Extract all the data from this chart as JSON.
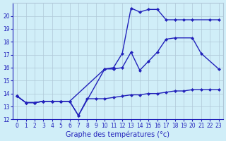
{
  "line1": {
    "x": [
      0,
      1,
      2,
      3,
      4,
      5,
      6,
      7,
      8,
      9,
      10,
      11,
      12,
      13,
      14,
      15,
      16,
      17,
      18,
      19,
      20,
      21,
      22,
      23
    ],
    "y": [
      13.8,
      13.3,
      13.3,
      13.4,
      13.4,
      13.4,
      13.4,
      12.3,
      13.6,
      13.6,
      13.6,
      13.7,
      13.8,
      13.9,
      13.9,
      14.0,
      14.0,
      14.1,
      14.2,
      14.2,
      14.3,
      14.3,
      14.3,
      14.3
    ],
    "color": "#2222bb",
    "marker": "D",
    "markersize": 2.0,
    "linewidth": 1.0
  },
  "line2": {
    "x": [
      0,
      1,
      2,
      3,
      4,
      5,
      6,
      7,
      10,
      11,
      12,
      13,
      14,
      15,
      16,
      17,
      18,
      20,
      21,
      23
    ],
    "y": [
      13.8,
      13.3,
      13.3,
      13.4,
      13.4,
      13.4,
      13.4,
      12.3,
      15.9,
      15.9,
      16.0,
      17.2,
      15.8,
      16.5,
      17.2,
      18.2,
      18.3,
      18.3,
      17.1,
      15.9
    ],
    "color": "#2222bb",
    "marker": "D",
    "markersize": 2.0,
    "linewidth": 1.0
  },
  "line3": {
    "x": [
      0,
      1,
      2,
      3,
      4,
      5,
      6,
      10,
      11,
      12,
      13,
      14,
      15,
      16,
      17,
      18,
      19,
      20,
      22,
      23
    ],
    "y": [
      13.8,
      13.3,
      13.3,
      13.4,
      13.4,
      13.4,
      13.4,
      15.9,
      16.0,
      17.1,
      20.6,
      20.3,
      20.5,
      20.5,
      19.7,
      19.7,
      19.7,
      19.7,
      19.7,
      19.7
    ],
    "color": "#2222bb",
    "marker": "D",
    "markersize": 2.0,
    "linewidth": 1.0
  },
  "bg_color": "#d0eef8",
  "grid_color": "#b0c8d8",
  "axis_color": "#2222bb",
  "xlabel": "Graphe des températures (°c)",
  "xlim": [
    -0.5,
    23.5
  ],
  "ylim": [
    12,
    21
  ],
  "yticks": [
    12,
    13,
    14,
    15,
    16,
    17,
    18,
    19,
    20
  ],
  "xticks": [
    0,
    1,
    2,
    3,
    4,
    5,
    6,
    7,
    8,
    9,
    10,
    11,
    12,
    13,
    14,
    15,
    16,
    17,
    18,
    19,
    20,
    21,
    22,
    23
  ],
  "tick_labelsize": 5.5,
  "xlabel_fontsize": 7.0
}
